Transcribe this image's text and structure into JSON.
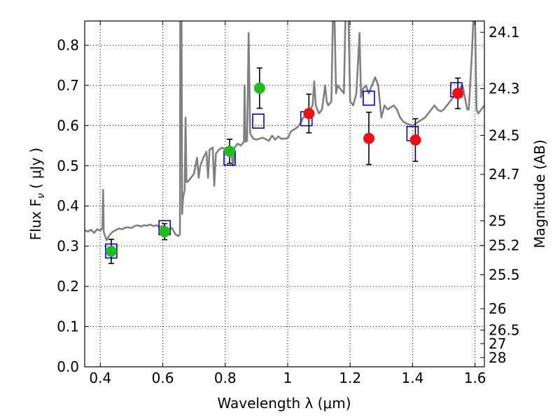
{
  "chart_data": {
    "type": "scatter",
    "xlabel": "Wavelength  λ (μm)",
    "ylabel": "Flux  F",
    "ylabel_sub": "ν",
    "ylabel_unit": "  ( μJy )",
    "y2label": "Magnitude (AB)",
    "xlim": [
      0.35,
      1.63
    ],
    "ylim": [
      0.0,
      0.86
    ],
    "grid": true,
    "colors": {
      "spectrum": "#808080",
      "photometry_green": "#22bb22",
      "photometry_red": "#ee1111",
      "model_squares": "#0000cc",
      "error_bars": "#000000"
    },
    "x_ticks": [
      0.4,
      0.6,
      0.8,
      1.0,
      1.2,
      1.4,
      1.6
    ],
    "x_tick_labels": [
      "0.4",
      "0.6",
      "0.8",
      "1",
      "1.2",
      "1.4",
      "1.6"
    ],
    "y_ticks": [
      0.0,
      0.1,
      0.2,
      0.3,
      0.4,
      0.5,
      0.6,
      0.7,
      0.8
    ],
    "y_tick_labels": [
      "0.0",
      "0.1",
      "0.2",
      "0.3",
      "0.4",
      "0.5",
      "0.6",
      "0.7",
      "0.8"
    ],
    "y2_ticks": [
      {
        "value": 24.1,
        "label": "24.1"
      },
      {
        "value": 24.3,
        "label": "24.3"
      },
      {
        "value": 24.5,
        "label": "24.5"
      },
      {
        "value": 24.7,
        "label": "24.7"
      },
      {
        "value": 25.0,
        "label": "25"
      },
      {
        "value": 25.2,
        "label": "25.2"
      },
      {
        "value": 25.5,
        "label": "25.5"
      },
      {
        "value": 26.0,
        "label": "26"
      },
      {
        "value": 26.5,
        "label": "26.5"
      },
      {
        "value": 27.0,
        "label": "27"
      },
      {
        "value": 28.0,
        "label": "28"
      }
    ],
    "series": [
      {
        "kind": "photometry",
        "color": "green",
        "points": [
          {
            "x": 0.435,
            "y": 0.287,
            "yerr": 0.03
          },
          {
            "x": 0.606,
            "y": 0.336,
            "yerr": 0.02
          },
          {
            "x": 0.814,
            "y": 0.536,
            "yerr": 0.03
          },
          {
            "x": 0.91,
            "y": 0.693,
            "yerr": 0.05
          }
        ]
      },
      {
        "kind": "photometry",
        "color": "red",
        "points": [
          {
            "x": 1.068,
            "y": 0.63,
            "yerr": 0.048
          },
          {
            "x": 1.26,
            "y": 0.568,
            "yerr": 0.065
          },
          {
            "x": 1.409,
            "y": 0.564,
            "yerr": 0.053
          },
          {
            "x": 1.545,
            "y": 0.68,
            "yerr": 0.038
          }
        ]
      },
      {
        "kind": "model",
        "marker": "open-square",
        "points": [
          {
            "x": 0.435,
            "y": 0.288
          },
          {
            "x": 0.606,
            "y": 0.346
          },
          {
            "x": 0.814,
            "y": 0.519
          },
          {
            "x": 0.906,
            "y": 0.611
          },
          {
            "x": 1.06,
            "y": 0.617
          },
          {
            "x": 1.26,
            "y": 0.668
          },
          {
            "x": 1.4,
            "y": 0.58
          },
          {
            "x": 1.54,
            "y": 0.689
          }
        ]
      }
    ],
    "spectrum": [
      [
        0.35,
        0.34
      ],
      [
        0.36,
        0.336
      ],
      [
        0.37,
        0.341
      ],
      [
        0.38,
        0.333
      ],
      [
        0.39,
        0.342
      ],
      [
        0.4,
        0.338
      ],
      [
        0.407,
        0.345
      ],
      [
        0.409,
        0.44
      ],
      [
        0.411,
        0.335
      ],
      [
        0.42,
        0.315
      ],
      [
        0.43,
        0.328
      ],
      [
        0.44,
        0.336
      ],
      [
        0.45,
        0.34
      ],
      [
        0.46,
        0.344
      ],
      [
        0.47,
        0.342
      ],
      [
        0.48,
        0.346
      ],
      [
        0.49,
        0.347
      ],
      [
        0.5,
        0.345
      ],
      [
        0.51,
        0.35
      ],
      [
        0.52,
        0.352
      ],
      [
        0.53,
        0.349
      ],
      [
        0.54,
        0.352
      ],
      [
        0.55,
        0.351
      ],
      [
        0.56,
        0.354
      ],
      [
        0.57,
        0.35
      ],
      [
        0.58,
        0.352
      ],
      [
        0.59,
        0.348
      ],
      [
        0.6,
        0.35
      ],
      [
        0.61,
        0.348
      ],
      [
        0.62,
        0.341
      ],
      [
        0.63,
        0.345
      ],
      [
        0.64,
        0.33
      ],
      [
        0.65,
        0.325
      ],
      [
        0.655,
        0.33
      ],
      [
        0.656,
        0.87
      ],
      [
        0.66,
        0.87
      ],
      [
        0.662,
        0.38
      ],
      [
        0.665,
        0.42
      ],
      [
        0.67,
        0.44
      ],
      [
        0.673,
        0.62
      ],
      [
        0.676,
        0.46
      ],
      [
        0.68,
        0.46
      ],
      [
        0.69,
        0.47
      ],
      [
        0.7,
        0.48
      ],
      [
        0.71,
        0.52
      ],
      [
        0.715,
        0.47
      ],
      [
        0.72,
        0.5
      ],
      [
        0.73,
        0.52
      ],
      [
        0.74,
        0.535
      ],
      [
        0.745,
        0.47
      ],
      [
        0.75,
        0.54
      ],
      [
        0.76,
        0.545
      ],
      [
        0.765,
        0.45
      ],
      [
        0.77,
        0.53
      ],
      [
        0.78,
        0.54
      ],
      [
        0.79,
        0.545
      ],
      [
        0.8,
        0.54
      ],
      [
        0.81,
        0.538
      ],
      [
        0.82,
        0.53
      ],
      [
        0.825,
        0.5
      ],
      [
        0.83,
        0.545
      ],
      [
        0.84,
        0.555
      ],
      [
        0.85,
        0.55
      ],
      [
        0.86,
        0.56
      ],
      [
        0.862,
        0.7
      ],
      [
        0.865,
        0.56
      ],
      [
        0.87,
        0.562
      ],
      [
        0.875,
        0.83
      ],
      [
        0.88,
        0.58
      ],
      [
        0.89,
        0.567
      ],
      [
        0.9,
        0.565
      ],
      [
        0.92,
        0.57
      ],
      [
        0.94,
        0.562
      ],
      [
        0.95,
        0.575
      ],
      [
        0.96,
        0.565
      ],
      [
        0.97,
        0.573
      ],
      [
        0.98,
        0.567
      ],
      [
        1.0,
        0.568
      ],
      [
        1.01,
        0.585
      ],
      [
        1.02,
        0.59
      ],
      [
        1.03,
        0.595
      ],
      [
        1.04,
        0.605
      ],
      [
        1.05,
        0.62
      ],
      [
        1.06,
        0.625
      ],
      [
        1.08,
        0.65
      ],
      [
        1.085,
        0.71
      ],
      [
        1.09,
        0.65
      ],
      [
        1.1,
        0.63
      ],
      [
        1.11,
        0.64
      ],
      [
        1.12,
        0.7
      ],
      [
        1.125,
        0.66
      ],
      [
        1.13,
        0.65
      ],
      [
        1.14,
        0.66
      ],
      [
        1.145,
        0.87
      ],
      [
        1.15,
        0.87
      ],
      [
        1.155,
        0.68
      ],
      [
        1.16,
        0.7
      ],
      [
        1.17,
        0.69
      ],
      [
        1.18,
        0.68
      ],
      [
        1.185,
        0.87
      ],
      [
        1.195,
        0.87
      ],
      [
        1.2,
        0.66
      ],
      [
        1.21,
        0.65
      ],
      [
        1.22,
        0.68
      ],
      [
        1.23,
        0.83
      ],
      [
        1.235,
        0.67
      ],
      [
        1.24,
        0.69
      ],
      [
        1.25,
        0.7
      ],
      [
        1.26,
        0.68
      ],
      [
        1.27,
        0.7
      ],
      [
        1.28,
        0.72
      ],
      [
        1.29,
        0.7
      ],
      [
        1.3,
        0.62
      ],
      [
        1.31,
        0.65
      ],
      [
        1.32,
        0.64
      ],
      [
        1.34,
        0.65
      ],
      [
        1.35,
        0.64
      ],
      [
        1.36,
        0.62
      ],
      [
        1.37,
        0.61
      ],
      [
        1.38,
        0.605
      ],
      [
        1.4,
        0.6
      ],
      [
        1.42,
        0.61
      ],
      [
        1.44,
        0.62
      ],
      [
        1.45,
        0.63
      ],
      [
        1.46,
        0.64
      ],
      [
        1.47,
        0.65
      ],
      [
        1.48,
        0.64
      ],
      [
        1.49,
        0.635
      ],
      [
        1.5,
        0.64
      ],
      [
        1.51,
        0.65
      ],
      [
        1.52,
        0.66
      ],
      [
        1.53,
        0.67
      ],
      [
        1.545,
        0.68
      ],
      [
        1.55,
        0.69
      ],
      [
        1.56,
        0.7
      ],
      [
        1.57,
        0.66
      ],
      [
        1.575,
        0.64
      ],
      [
        1.58,
        0.64
      ],
      [
        1.59,
        0.78
      ],
      [
        1.595,
        0.87
      ],
      [
        1.6,
        0.87
      ],
      [
        1.605,
        0.64
      ],
      [
        1.61,
        0.63
      ],
      [
        1.62,
        0.64
      ],
      [
        1.63,
        0.65
      ]
    ]
  }
}
